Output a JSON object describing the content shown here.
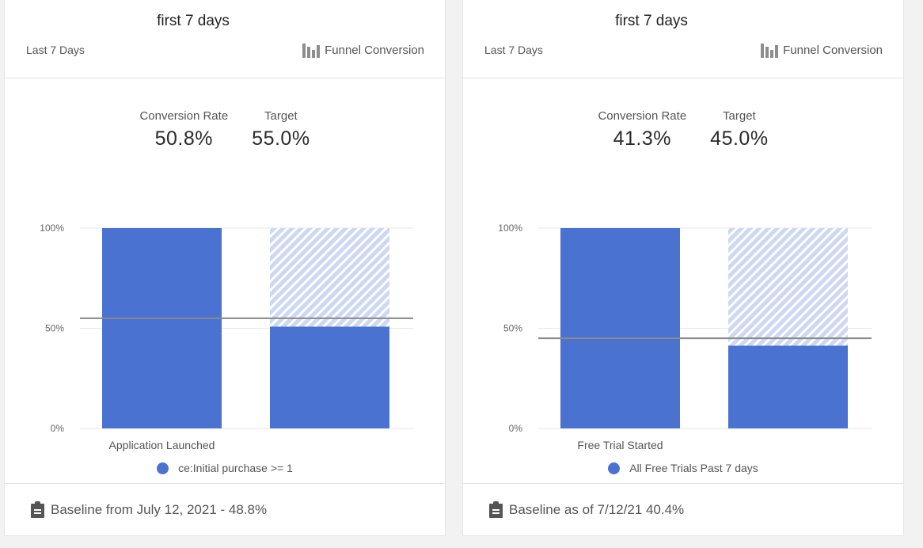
{
  "colors": {
    "bar": "#4a72d1",
    "target_fill": "#cdd8f2",
    "target_stripe": "#ffffff",
    "target_line": "#8a8a8a",
    "grid": "#e6e6e6"
  },
  "cards": [
    {
      "title": "first 7 days",
      "range_label": "Last 7 Days",
      "viz_type_label": "Funnel Conversion",
      "viz_icon": "funnel-chart-icon",
      "metrics": [
        {
          "label": "Conversion Rate",
          "value": "50.8%"
        },
        {
          "label": "Target",
          "value": "55.0%"
        }
      ],
      "legend_label": "ce:Initial purchase >= 1",
      "footer_icon": "clipboard-icon",
      "footer_text": "Baseline from July 12, 2021 - 48.8%"
    },
    {
      "title": "first 7 days",
      "range_label": "Last 7 Days",
      "viz_type_label": "Funnel Conversion",
      "viz_icon": "funnel-chart-icon",
      "metrics": [
        {
          "label": "Conversion Rate",
          "value": "41.3%"
        },
        {
          "label": "Target",
          "value": "45.0%"
        }
      ],
      "legend_label": "All Free Trials Past 7 days",
      "footer_icon": "clipboard-icon",
      "footer_text": "Baseline as of 7/12/21 40.4%"
    }
  ],
  "chart_data": [
    {
      "type": "bar",
      "y_ticks": [
        "0%",
        "50%",
        "100%"
      ],
      "ylim": [
        0,
        100
      ],
      "categories": [
        "Application Launched",
        ""
      ],
      "values": [
        100,
        50.8
      ],
      "dropoff_values": [
        0,
        49.2
      ],
      "target_line": 55.0,
      "legend": "ce:Initial purchase >= 1",
      "grid": true
    },
    {
      "type": "bar",
      "y_ticks": [
        "0%",
        "50%",
        "100%"
      ],
      "ylim": [
        0,
        100
      ],
      "categories": [
        "Free Trial Started",
        ""
      ],
      "values": [
        100,
        41.3
      ],
      "dropoff_values": [
        0,
        58.7
      ],
      "target_line": 45.0,
      "legend": "All Free Trials Past 7 days",
      "grid": true
    }
  ]
}
